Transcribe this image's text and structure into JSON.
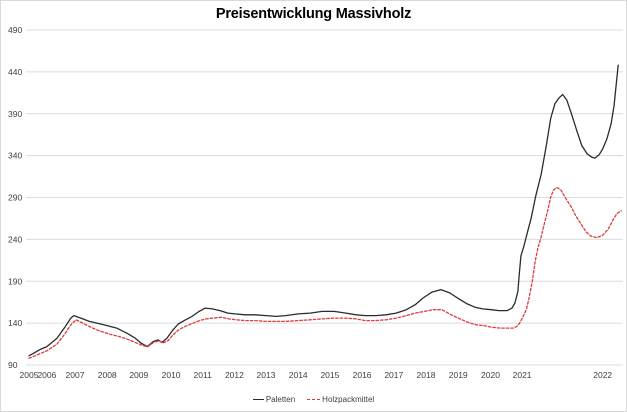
{
  "chart_data": {
    "type": "line",
    "title": "Preisentwicklung Massivholz",
    "grid": true,
    "legend_position": "bottom",
    "grid_color": "#dcdcdc",
    "text_color": "#404040",
    "border_color": "#d9d9d9",
    "y_axis": {
      "min": 90,
      "max": 490,
      "tick_step": 50,
      "ticks": [
        90,
        140,
        190,
        240,
        290,
        340,
        390,
        440,
        490
      ]
    },
    "x_axis": {
      "note": "year labels, irregular spacing as rendered",
      "ticks": [
        {
          "label": "2005",
          "pos": 0.005
        },
        {
          "label": "2006",
          "pos": 0.035
        },
        {
          "label": "2007",
          "pos": 0.082
        },
        {
          "label": "2008",
          "pos": 0.136
        },
        {
          "label": "2009",
          "pos": 0.189
        },
        {
          "label": "2010",
          "pos": 0.243
        },
        {
          "label": "2011",
          "pos": 0.296
        },
        {
          "label": "2012",
          "pos": 0.349
        },
        {
          "label": "2013",
          "pos": 0.402
        },
        {
          "label": "2014",
          "pos": 0.456
        },
        {
          "label": "2015",
          "pos": 0.509
        },
        {
          "label": "2016",
          "pos": 0.563
        },
        {
          "label": "2017",
          "pos": 0.616
        },
        {
          "label": "2018",
          "pos": 0.67
        },
        {
          "label": "2019",
          "pos": 0.724
        },
        {
          "label": "2020",
          "pos": 0.778
        },
        {
          "label": "2021",
          "pos": 0.831
        },
        {
          "label": "2022",
          "pos": 0.966
        }
      ]
    },
    "series": [
      {
        "name": "Paletten",
        "color": "#2b2b2b",
        "line_style": "solid",
        "points": [
          [
            0.005,
            101
          ],
          [
            0.015,
            105
          ],
          [
            0.025,
            109
          ],
          [
            0.035,
            112
          ],
          [
            0.052,
            122
          ],
          [
            0.065,
            135
          ],
          [
            0.075,
            146
          ],
          [
            0.08,
            149
          ],
          [
            0.092,
            146
          ],
          [
            0.106,
            142
          ],
          [
            0.119,
            140
          ],
          [
            0.136,
            137
          ],
          [
            0.152,
            134
          ],
          [
            0.169,
            128
          ],
          [
            0.183,
            122
          ],
          [
            0.193,
            116
          ],
          [
            0.203,
            112
          ],
          [
            0.213,
            118
          ],
          [
            0.221,
            120
          ],
          [
            0.228,
            117
          ],
          [
            0.236,
            122
          ],
          [
            0.245,
            131
          ],
          [
            0.255,
            139
          ],
          [
            0.265,
            143
          ],
          [
            0.278,
            148
          ],
          [
            0.29,
            154
          ],
          [
            0.3,
            158
          ],
          [
            0.312,
            157
          ],
          [
            0.325,
            155
          ],
          [
            0.338,
            152
          ],
          [
            0.35,
            151
          ],
          [
            0.367,
            150
          ],
          [
            0.384,
            150
          ],
          [
            0.402,
            149
          ],
          [
            0.419,
            148
          ],
          [
            0.435,
            149
          ],
          [
            0.456,
            151
          ],
          [
            0.476,
            152
          ],
          [
            0.496,
            154
          ],
          [
            0.516,
            154
          ],
          [
            0.536,
            152
          ],
          [
            0.553,
            150
          ],
          [
            0.568,
            149
          ],
          [
            0.586,
            149
          ],
          [
            0.603,
            150
          ],
          [
            0.62,
            152
          ],
          [
            0.637,
            156
          ],
          [
            0.652,
            162
          ],
          [
            0.665,
            170
          ],
          [
            0.68,
            177
          ],
          [
            0.695,
            180
          ],
          [
            0.71,
            176
          ],
          [
            0.725,
            169
          ],
          [
            0.739,
            163
          ],
          [
            0.752,
            159
          ],
          [
            0.765,
            157
          ],
          [
            0.779,
            156
          ],
          [
            0.792,
            155
          ],
          [
            0.806,
            155
          ],
          [
            0.814,
            158
          ],
          [
            0.819,
            164
          ],
          [
            0.824,
            178
          ],
          [
            0.826,
            196
          ],
          [
            0.829,
            220
          ],
          [
            0.834,
            232
          ],
          [
            0.839,
            246
          ],
          [
            0.846,
            265
          ],
          [
            0.854,
            292
          ],
          [
            0.863,
            318
          ],
          [
            0.871,
            350
          ],
          [
            0.879,
            385
          ],
          [
            0.886,
            402
          ],
          [
            0.893,
            409
          ],
          [
            0.899,
            413
          ],
          [
            0.906,
            406
          ],
          [
            0.914,
            389
          ],
          [
            0.923,
            369
          ],
          [
            0.931,
            352
          ],
          [
            0.94,
            342
          ],
          [
            0.948,
            338
          ],
          [
            0.953,
            337
          ],
          [
            0.96,
            341
          ],
          [
            0.966,
            348
          ],
          [
            0.973,
            360
          ],
          [
            0.98,
            378
          ],
          [
            0.985,
            399
          ],
          [
            0.988,
            420
          ],
          [
            0.992,
            448
          ]
        ]
      },
      {
        "name": "Holzpackmittel",
        "color": "#e03c3c",
        "line_style": "dashed",
        "points": [
          [
            0.005,
            98
          ],
          [
            0.015,
            101
          ],
          [
            0.025,
            104
          ],
          [
            0.035,
            107
          ],
          [
            0.052,
            115
          ],
          [
            0.065,
            127
          ],
          [
            0.075,
            138
          ],
          [
            0.084,
            144
          ],
          [
            0.095,
            140
          ],
          [
            0.109,
            135
          ],
          [
            0.122,
            131
          ],
          [
            0.139,
            127
          ],
          [
            0.156,
            124
          ],
          [
            0.173,
            120
          ],
          [
            0.186,
            116
          ],
          [
            0.196,
            113
          ],
          [
            0.204,
            112
          ],
          [
            0.214,
            117
          ],
          [
            0.223,
            119
          ],
          [
            0.229,
            116
          ],
          [
            0.238,
            119
          ],
          [
            0.246,
            126
          ],
          [
            0.256,
            132
          ],
          [
            0.266,
            136
          ],
          [
            0.28,
            140
          ],
          [
            0.291,
            143
          ],
          [
            0.302,
            145
          ],
          [
            0.313,
            146
          ],
          [
            0.327,
            147
          ],
          [
            0.34,
            145
          ],
          [
            0.352,
            144
          ],
          [
            0.368,
            143
          ],
          [
            0.385,
            143
          ],
          [
            0.402,
            142
          ],
          [
            0.419,
            142
          ],
          [
            0.435,
            142
          ],
          [
            0.456,
            143
          ],
          [
            0.476,
            144
          ],
          [
            0.496,
            145
          ],
          [
            0.516,
            146
          ],
          [
            0.536,
            146
          ],
          [
            0.553,
            145
          ],
          [
            0.568,
            143
          ],
          [
            0.586,
            143
          ],
          [
            0.603,
            144
          ],
          [
            0.62,
            146
          ],
          [
            0.637,
            149
          ],
          [
            0.652,
            152
          ],
          [
            0.667,
            154
          ],
          [
            0.682,
            156
          ],
          [
            0.697,
            156
          ],
          [
            0.712,
            150
          ],
          [
            0.727,
            145
          ],
          [
            0.74,
            141
          ],
          [
            0.754,
            138
          ],
          [
            0.767,
            137
          ],
          [
            0.78,
            135
          ],
          [
            0.794,
            134
          ],
          [
            0.807,
            134
          ],
          [
            0.816,
            134
          ],
          [
            0.822,
            136
          ],
          [
            0.827,
            140
          ],
          [
            0.832,
            147
          ],
          [
            0.838,
            156
          ],
          [
            0.842,
            168
          ],
          [
            0.848,
            190
          ],
          [
            0.853,
            214
          ],
          [
            0.858,
            231
          ],
          [
            0.863,
            243
          ],
          [
            0.868,
            258
          ],
          [
            0.874,
            275
          ],
          [
            0.879,
            291
          ],
          [
            0.884,
            299
          ],
          [
            0.889,
            302
          ],
          [
            0.896,
            299
          ],
          [
            0.904,
            289
          ],
          [
            0.913,
            279
          ],
          [
            0.921,
            268
          ],
          [
            0.93,
            258
          ],
          [
            0.938,
            249
          ],
          [
            0.946,
            244
          ],
          [
            0.956,
            242
          ],
          [
            0.966,
            245
          ],
          [
            0.975,
            252
          ],
          [
            0.983,
            263
          ],
          [
            0.99,
            271
          ],
          [
            0.997,
            274
          ]
        ]
      }
    ]
  }
}
